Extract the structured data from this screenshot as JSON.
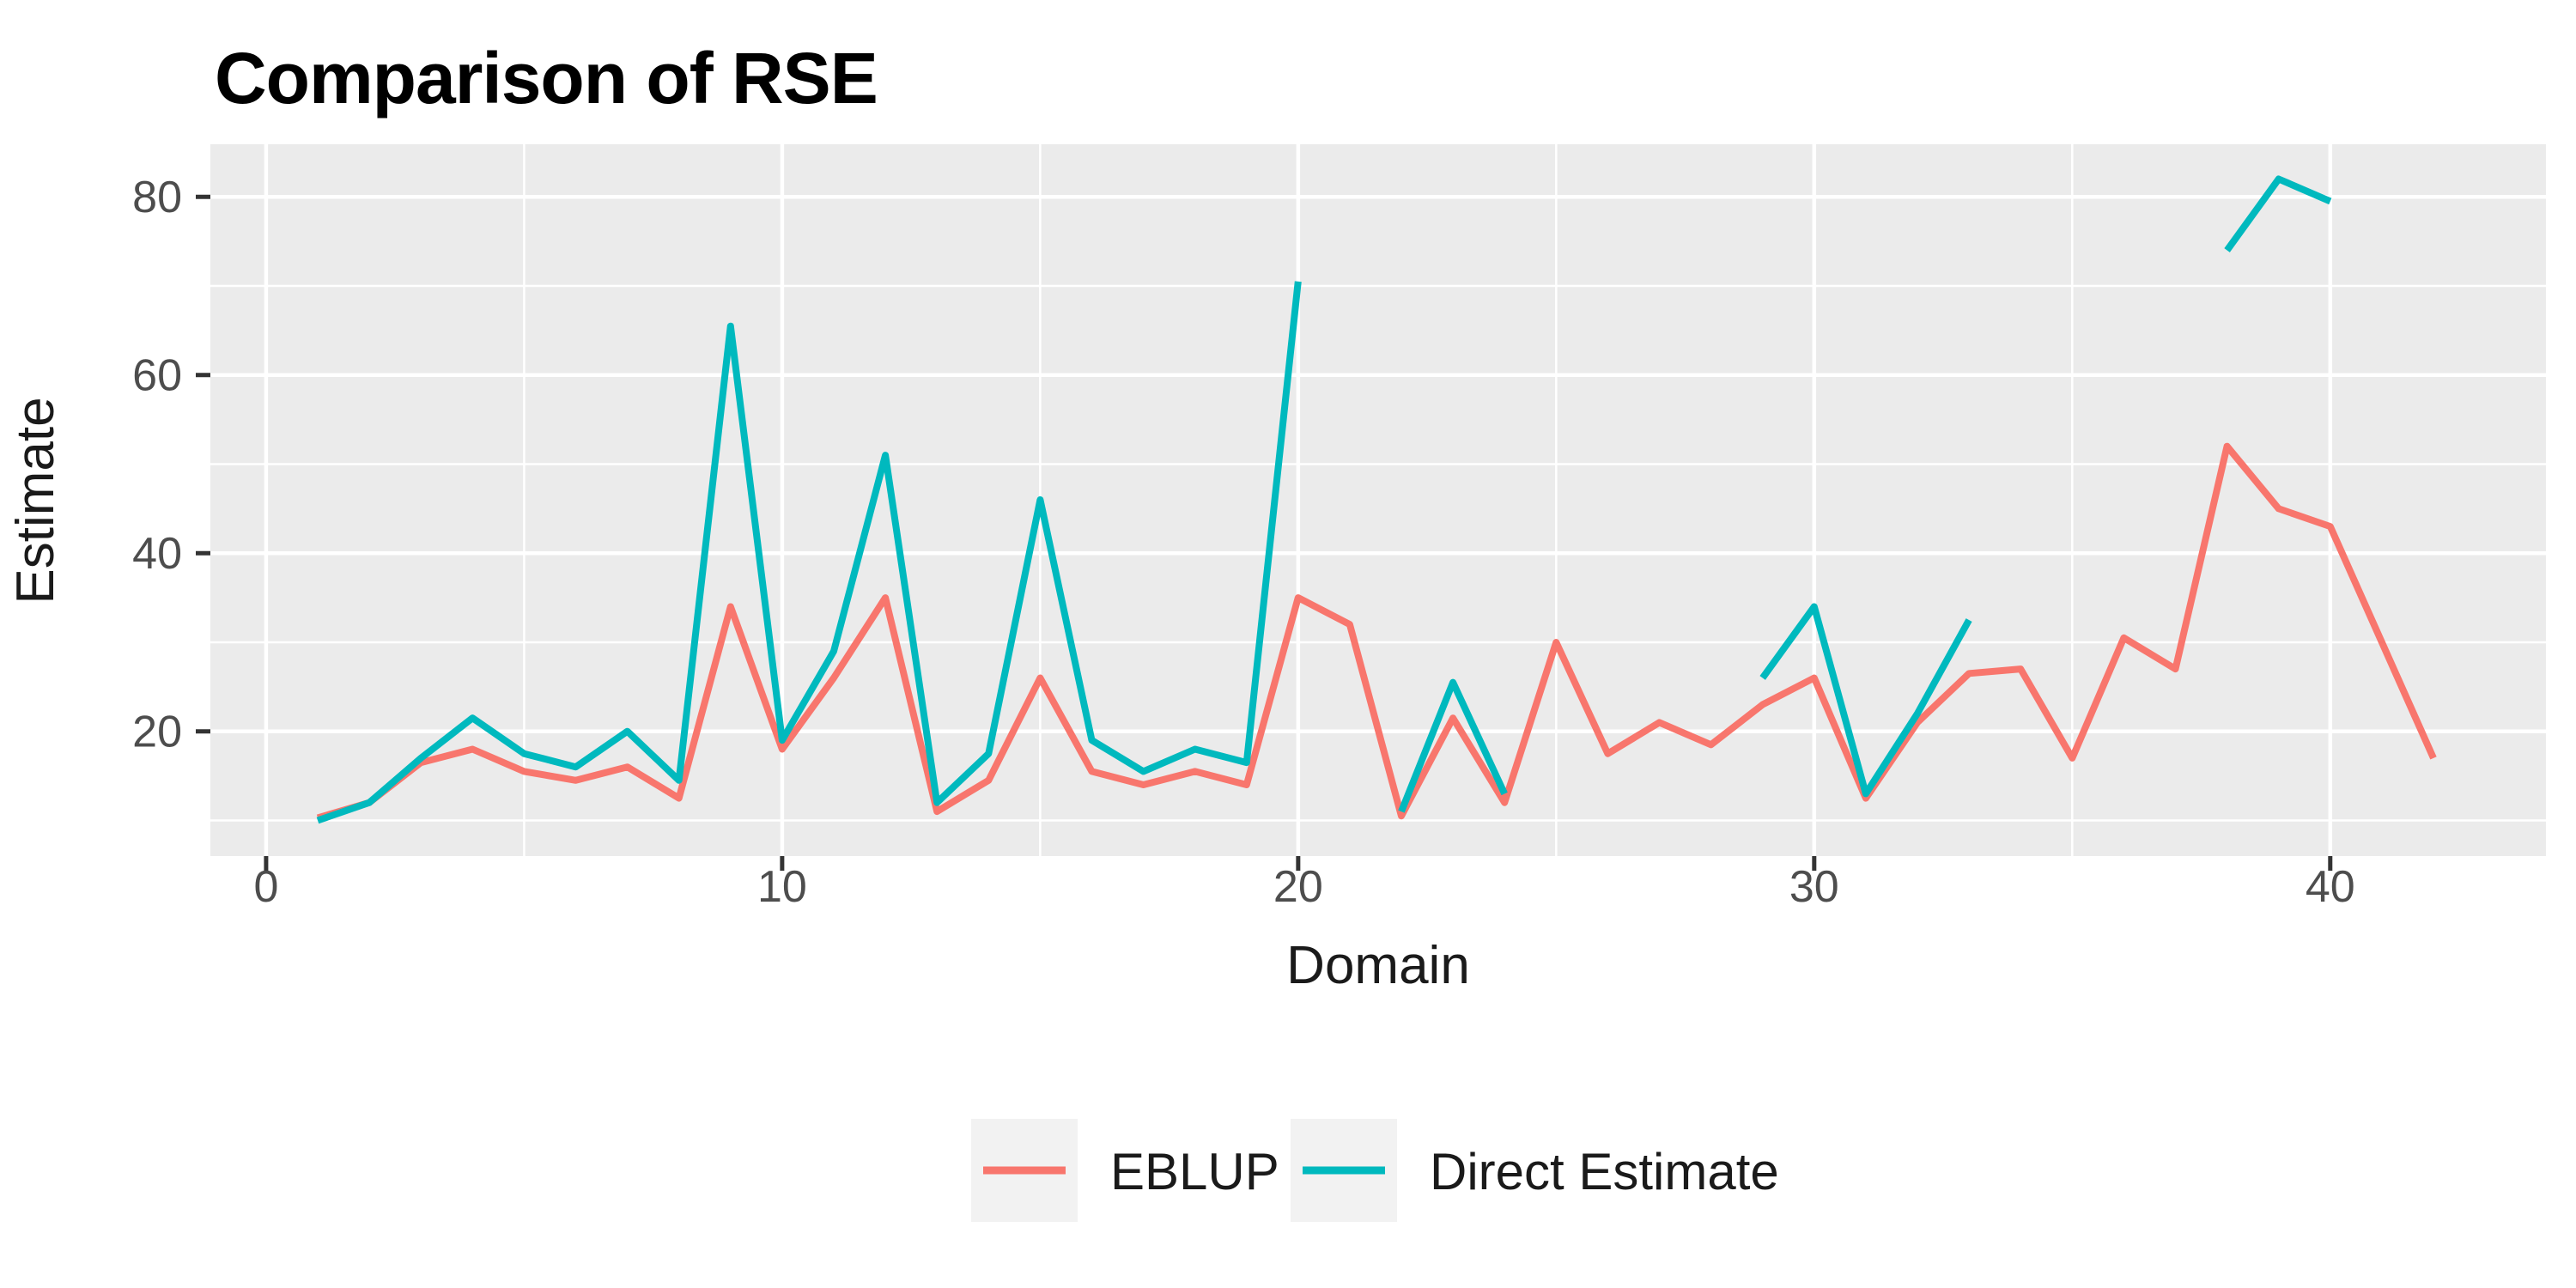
{
  "chart_data": {
    "type": "line",
    "title": "Comparison of RSE",
    "xlabel": "Domain",
    "ylabel": "Estimate",
    "x_ticks": [
      0,
      10,
      20,
      30,
      40
    ],
    "x_minor_ticks": [
      5,
      15,
      25,
      35
    ],
    "y_ticks": [
      20,
      40,
      60,
      80
    ],
    "y_minor_ticks": [
      10,
      30,
      50,
      70
    ],
    "xlim": [
      -1.08,
      44.18
    ],
    "ylim": [
      6.0,
      85.9
    ],
    "grid": true,
    "legend_position": "bottom",
    "panel_background": "#EBEBEB",
    "grid_color": "#FFFFFF",
    "tick_mark_color": "#333333",
    "tick_label_color": "#4d4d4d",
    "legend_key_background": "#F2F2F2",
    "x": [
      1,
      2,
      3,
      4,
      5,
      6,
      7,
      8,
      9,
      10,
      11,
      12,
      13,
      14,
      15,
      16,
      17,
      18,
      19,
      20,
      21,
      22,
      23,
      24,
      25,
      26,
      27,
      28,
      29,
      30,
      31,
      32,
      33,
      34,
      35,
      36,
      37,
      38,
      39,
      40,
      41,
      42
    ],
    "series": [
      {
        "name": "EBLUP",
        "color": "#F8766D",
        "values": [
          10.3,
          12,
          16.5,
          18,
          15.5,
          14.5,
          16,
          12.5,
          34,
          18,
          26,
          35,
          11,
          14.5,
          26,
          15.5,
          14,
          15.5,
          14,
          35,
          32,
          10.5,
          21.5,
          12,
          30,
          17.5,
          21,
          18.5,
          23,
          26,
          12.5,
          21,
          26.5,
          27,
          17,
          30.5,
          27,
          52,
          45,
          43,
          30,
          17
        ]
      },
      {
        "name": "Direct Estimate",
        "color": "#00B9BE",
        "values": [
          10,
          12,
          17,
          21.5,
          17.5,
          16,
          20,
          14.5,
          65.5,
          19,
          29,
          51,
          12,
          17.5,
          46,
          19,
          15.5,
          18,
          16.5,
          70.5,
          null,
          11,
          25.5,
          13,
          null,
          null,
          null,
          null,
          26,
          34,
          13,
          22,
          32.5,
          null,
          null,
          null,
          null,
          74,
          82,
          79.5,
          null,
          null
        ]
      }
    ]
  }
}
